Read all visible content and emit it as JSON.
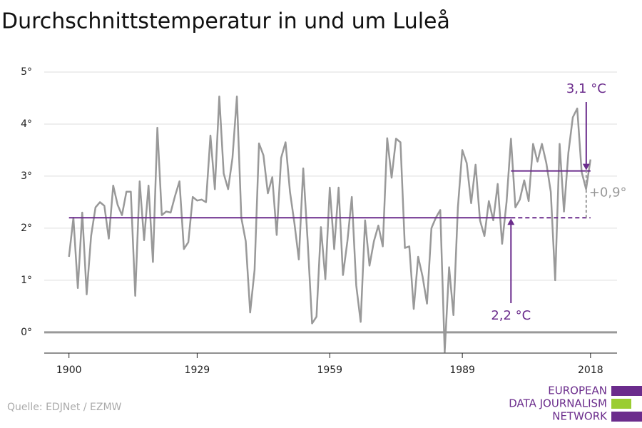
{
  "chart_data": {
    "type": "line",
    "title": "Durchschnittstemperatur in und um Luleå",
    "x": [
      1900,
      1901,
      1902,
      1903,
      1904,
      1905,
      1906,
      1907,
      1908,
      1909,
      1910,
      1911,
      1912,
      1913,
      1914,
      1915,
      1916,
      1917,
      1918,
      1919,
      1920,
      1921,
      1922,
      1923,
      1924,
      1925,
      1926,
      1927,
      1928,
      1929,
      1930,
      1931,
      1932,
      1933,
      1934,
      1935,
      1936,
      1937,
      1938,
      1939,
      1940,
      1941,
      1942,
      1943,
      1944,
      1945,
      1946,
      1947,
      1948,
      1949,
      1950,
      1951,
      1952,
      1953,
      1954,
      1955,
      1956,
      1957,
      1958,
      1959,
      1960,
      1961,
      1962,
      1963,
      1964,
      1965,
      1966,
      1967,
      1968,
      1969,
      1970,
      1971,
      1972,
      1973,
      1974,
      1975,
      1976,
      1977,
      1978,
      1979,
      1980,
      1981,
      1982,
      1983,
      1984,
      1985,
      1986,
      1987,
      1988,
      1989,
      1990,
      1991,
      1992,
      1993,
      1994,
      1995,
      1996,
      1997,
      1998,
      1999,
      2000,
      2001,
      2002,
      2003,
      2004,
      2005,
      2006,
      2007,
      2008,
      2009,
      2010,
      2011,
      2012,
      2013,
      2014,
      2015,
      2016,
      2017,
      2018
    ],
    "values": [
      1.45,
      2.2,
      0.85,
      2.3,
      0.73,
      1.85,
      2.4,
      2.5,
      2.43,
      1.8,
      2.82,
      2.45,
      2.25,
      2.7,
      2.7,
      0.7,
      2.9,
      1.77,
      2.82,
      1.35,
      3.93,
      2.25,
      2.32,
      2.3,
      2.62,
      2.9,
      1.6,
      1.73,
      2.6,
      2.53,
      2.55,
      2.5,
      3.78,
      2.75,
      4.53,
      3.05,
      2.75,
      3.35,
      4.53,
      2.2,
      1.75,
      0.38,
      1.2,
      3.63,
      3.4,
      2.67,
      2.98,
      1.87,
      3.35,
      3.65,
      2.7,
      2.1,
      1.4,
      3.15,
      1.75,
      0.17,
      0.3,
      2.02,
      1.02,
      2.78,
      1.6,
      2.78,
      1.1,
      1.75,
      2.6,
      0.9,
      0.2,
      2.15,
      1.28,
      1.75,
      2.05,
      1.65,
      3.73,
      2.97,
      3.72,
      3.65,
      1.62,
      1.65,
      0.45,
      1.45,
      1.07,
      0.55,
      2.0,
      2.2,
      2.35,
      -0.38,
      1.25,
      0.33,
      2.4,
      3.5,
      3.25,
      2.48,
      3.22,
      2.15,
      1.85,
      2.52,
      2.15,
      2.85,
      1.7,
      2.5,
      3.72,
      2.4,
      2.55,
      2.92,
      2.52,
      3.62,
      3.28,
      3.62,
      3.25,
      2.7,
      1.0,
      3.62,
      2.32,
      3.45,
      4.13,
      4.3,
      3.08,
      2.75,
      3.32
    ],
    "color": "#999999",
    "xlim": [
      1894.4,
      2024
    ],
    "xticks": [
      1900,
      1929,
      1959,
      1989,
      2018
    ],
    "ylim": [
      -0.4,
      5
    ],
    "yticks": [
      {
        "value": 0,
        "label": "0°"
      },
      {
        "value": 1,
        "label": "1°"
      },
      {
        "value": 2,
        "label": "2°"
      },
      {
        "value": 3,
        "label": "3°"
      },
      {
        "value": 4,
        "label": "4°"
      },
      {
        "value": 5,
        "label": "5°"
      }
    ],
    "grid": true,
    "references": [
      {
        "value": 2.2,
        "label": "2,2 °C",
        "from": 1900,
        "to": 2018,
        "color": "#6b2c8c"
      },
      {
        "value": 3.1,
        "label": "3,1 °C",
        "from": 2000,
        "to": 2018,
        "color": "#6b2c8c"
      }
    ],
    "difference_label": "+0,9°",
    "source": "Quelle: EDJNet / EZMW",
    "logo": [
      "EUROPEAN",
      "DATA JOURNALISM",
      "NETWORK"
    ]
  }
}
